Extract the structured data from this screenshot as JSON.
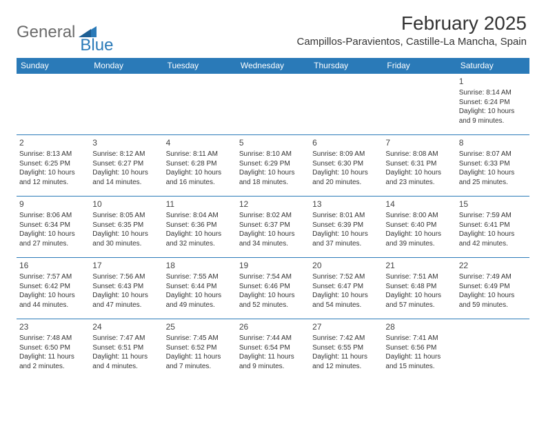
{
  "brand": {
    "text1": "General",
    "text2": "Blue",
    "accent": "#2a7ab8",
    "gray": "#6b6b6b"
  },
  "title": "February 2025",
  "location": "Campillos-Paravientos, Castille-La Mancha, Spain",
  "colors": {
    "header_bg": "#2a7ab8",
    "header_fg": "#ffffff",
    "rule": "#2a7ab8",
    "text": "#333333",
    "bg": "#ffffff"
  },
  "day_names": [
    "Sunday",
    "Monday",
    "Tuesday",
    "Wednesday",
    "Thursday",
    "Friday",
    "Saturday"
  ],
  "weeks": [
    [
      null,
      null,
      null,
      null,
      null,
      null,
      {
        "n": "1",
        "sr": "Sunrise: 8:14 AM",
        "ss": "Sunset: 6:24 PM",
        "d1": "Daylight: 10 hours",
        "d2": "and 9 minutes."
      }
    ],
    [
      {
        "n": "2",
        "sr": "Sunrise: 8:13 AM",
        "ss": "Sunset: 6:25 PM",
        "d1": "Daylight: 10 hours",
        "d2": "and 12 minutes."
      },
      {
        "n": "3",
        "sr": "Sunrise: 8:12 AM",
        "ss": "Sunset: 6:27 PM",
        "d1": "Daylight: 10 hours",
        "d2": "and 14 minutes."
      },
      {
        "n": "4",
        "sr": "Sunrise: 8:11 AM",
        "ss": "Sunset: 6:28 PM",
        "d1": "Daylight: 10 hours",
        "d2": "and 16 minutes."
      },
      {
        "n": "5",
        "sr": "Sunrise: 8:10 AM",
        "ss": "Sunset: 6:29 PM",
        "d1": "Daylight: 10 hours",
        "d2": "and 18 minutes."
      },
      {
        "n": "6",
        "sr": "Sunrise: 8:09 AM",
        "ss": "Sunset: 6:30 PM",
        "d1": "Daylight: 10 hours",
        "d2": "and 20 minutes."
      },
      {
        "n": "7",
        "sr": "Sunrise: 8:08 AM",
        "ss": "Sunset: 6:31 PM",
        "d1": "Daylight: 10 hours",
        "d2": "and 23 minutes."
      },
      {
        "n": "8",
        "sr": "Sunrise: 8:07 AM",
        "ss": "Sunset: 6:33 PM",
        "d1": "Daylight: 10 hours",
        "d2": "and 25 minutes."
      }
    ],
    [
      {
        "n": "9",
        "sr": "Sunrise: 8:06 AM",
        "ss": "Sunset: 6:34 PM",
        "d1": "Daylight: 10 hours",
        "d2": "and 27 minutes."
      },
      {
        "n": "10",
        "sr": "Sunrise: 8:05 AM",
        "ss": "Sunset: 6:35 PM",
        "d1": "Daylight: 10 hours",
        "d2": "and 30 minutes."
      },
      {
        "n": "11",
        "sr": "Sunrise: 8:04 AM",
        "ss": "Sunset: 6:36 PM",
        "d1": "Daylight: 10 hours",
        "d2": "and 32 minutes."
      },
      {
        "n": "12",
        "sr": "Sunrise: 8:02 AM",
        "ss": "Sunset: 6:37 PM",
        "d1": "Daylight: 10 hours",
        "d2": "and 34 minutes."
      },
      {
        "n": "13",
        "sr": "Sunrise: 8:01 AM",
        "ss": "Sunset: 6:39 PM",
        "d1": "Daylight: 10 hours",
        "d2": "and 37 minutes."
      },
      {
        "n": "14",
        "sr": "Sunrise: 8:00 AM",
        "ss": "Sunset: 6:40 PM",
        "d1": "Daylight: 10 hours",
        "d2": "and 39 minutes."
      },
      {
        "n": "15",
        "sr": "Sunrise: 7:59 AM",
        "ss": "Sunset: 6:41 PM",
        "d1": "Daylight: 10 hours",
        "d2": "and 42 minutes."
      }
    ],
    [
      {
        "n": "16",
        "sr": "Sunrise: 7:57 AM",
        "ss": "Sunset: 6:42 PM",
        "d1": "Daylight: 10 hours",
        "d2": "and 44 minutes."
      },
      {
        "n": "17",
        "sr": "Sunrise: 7:56 AM",
        "ss": "Sunset: 6:43 PM",
        "d1": "Daylight: 10 hours",
        "d2": "and 47 minutes."
      },
      {
        "n": "18",
        "sr": "Sunrise: 7:55 AM",
        "ss": "Sunset: 6:44 PM",
        "d1": "Daylight: 10 hours",
        "d2": "and 49 minutes."
      },
      {
        "n": "19",
        "sr": "Sunrise: 7:54 AM",
        "ss": "Sunset: 6:46 PM",
        "d1": "Daylight: 10 hours",
        "d2": "and 52 minutes."
      },
      {
        "n": "20",
        "sr": "Sunrise: 7:52 AM",
        "ss": "Sunset: 6:47 PM",
        "d1": "Daylight: 10 hours",
        "d2": "and 54 minutes."
      },
      {
        "n": "21",
        "sr": "Sunrise: 7:51 AM",
        "ss": "Sunset: 6:48 PM",
        "d1": "Daylight: 10 hours",
        "d2": "and 57 minutes."
      },
      {
        "n": "22",
        "sr": "Sunrise: 7:49 AM",
        "ss": "Sunset: 6:49 PM",
        "d1": "Daylight: 10 hours",
        "d2": "and 59 minutes."
      }
    ],
    [
      {
        "n": "23",
        "sr": "Sunrise: 7:48 AM",
        "ss": "Sunset: 6:50 PM",
        "d1": "Daylight: 11 hours",
        "d2": "and 2 minutes."
      },
      {
        "n": "24",
        "sr": "Sunrise: 7:47 AM",
        "ss": "Sunset: 6:51 PM",
        "d1": "Daylight: 11 hours",
        "d2": "and 4 minutes."
      },
      {
        "n": "25",
        "sr": "Sunrise: 7:45 AM",
        "ss": "Sunset: 6:52 PM",
        "d1": "Daylight: 11 hours",
        "d2": "and 7 minutes."
      },
      {
        "n": "26",
        "sr": "Sunrise: 7:44 AM",
        "ss": "Sunset: 6:54 PM",
        "d1": "Daylight: 11 hours",
        "d2": "and 9 minutes."
      },
      {
        "n": "27",
        "sr": "Sunrise: 7:42 AM",
        "ss": "Sunset: 6:55 PM",
        "d1": "Daylight: 11 hours",
        "d2": "and 12 minutes."
      },
      {
        "n": "28",
        "sr": "Sunrise: 7:41 AM",
        "ss": "Sunset: 6:56 PM",
        "d1": "Daylight: 11 hours",
        "d2": "and 15 minutes."
      },
      null
    ]
  ]
}
